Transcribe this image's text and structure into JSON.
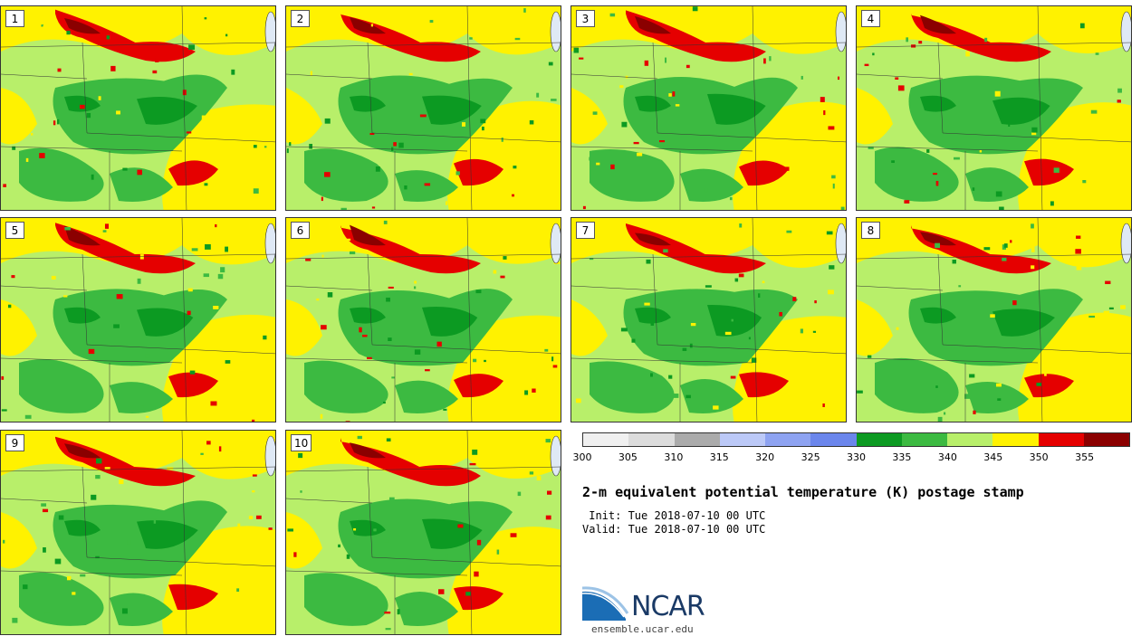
{
  "panels": [
    {
      "label": "1"
    },
    {
      "label": "2"
    },
    {
      "label": "3"
    },
    {
      "label": "4"
    },
    {
      "label": "5"
    },
    {
      "label": "6"
    },
    {
      "label": "7"
    },
    {
      "label": "8"
    },
    {
      "label": "9"
    },
    {
      "label": "10"
    }
  ],
  "colorbar": {
    "colors": [
      "#f0f0f0",
      "#dcdcdc",
      "#ababab",
      "#bcc9f7",
      "#8ea3f1",
      "#6b86ec",
      "#0c9a22",
      "#3cba41",
      "#b8ef6a",
      "#fff200",
      "#e50000",
      "#8b0000"
    ],
    "ticks": [
      "300",
      "305",
      "310",
      "315",
      "320",
      "325",
      "330",
      "335",
      "340",
      "345",
      "350",
      "355"
    ]
  },
  "title": "2-m equivalent potential temperature (K) postage stamp",
  "init_line": " Init: Tue 2018-07-10 00 UTC",
  "valid_line": "Valid: Tue 2018-07-10 00 UTC",
  "logo": {
    "text": "NCAR",
    "url": "ensemble.ucar.edu"
  }
}
